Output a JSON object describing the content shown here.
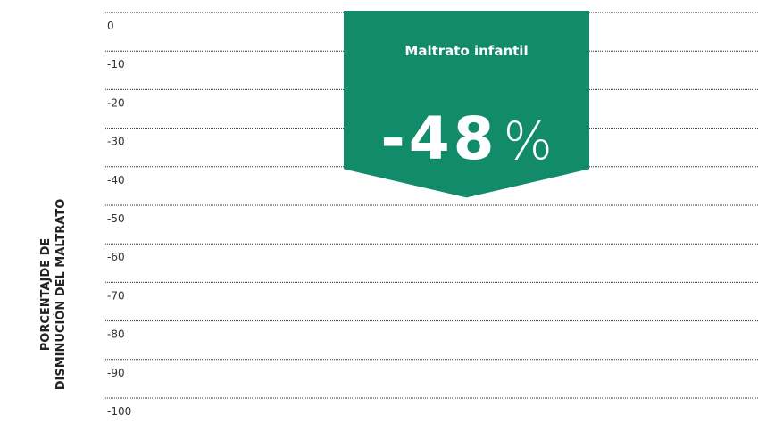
{
  "chart_data": {
    "type": "callout",
    "ylabel": [
      "PORCENTAJDE DE",
      "DISMINUCIÓN DEL MALTRATO"
    ],
    "categories": [
      "Maltrato infantil"
    ],
    "values": [
      -48
    ],
    "value_labels": [
      "-48%"
    ],
    "color": "#128b6b",
    "ylim": [
      -100,
      0
    ],
    "yticks": [
      0,
      -10,
      -20,
      -30,
      -40,
      -50,
      -60,
      -70,
      -80,
      -90,
      -100
    ],
    "grid": true
  }
}
